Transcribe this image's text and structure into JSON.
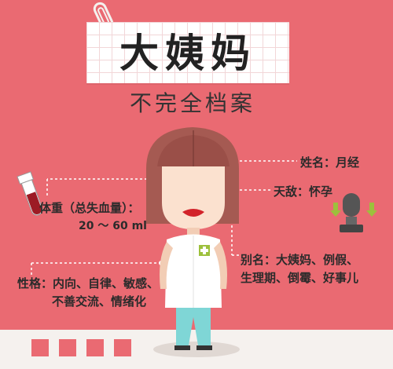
{
  "title": "大姨妈",
  "subtitle": "不完全档案",
  "profile": {
    "name": "姓名：月经",
    "enemy": "天敌：怀孕",
    "weight_label": "体重（总失血量）：",
    "weight_value": "20 ～ 60 ml",
    "alias_line1": "别名：大姨妈、例假、",
    "alias_line2": "生理期、倒霉、好事儿",
    "personality_line1": "性格：内向、自律、敏感、",
    "personality_line2": "不善交流、情绪化"
  },
  "colors": {
    "background": "#ea6a72",
    "hair": "#a55a52",
    "skin": "#fbe1cf",
    "coat": "#ffffff",
    "pants": "#7fd6d6",
    "lips": "#d2232a"
  }
}
